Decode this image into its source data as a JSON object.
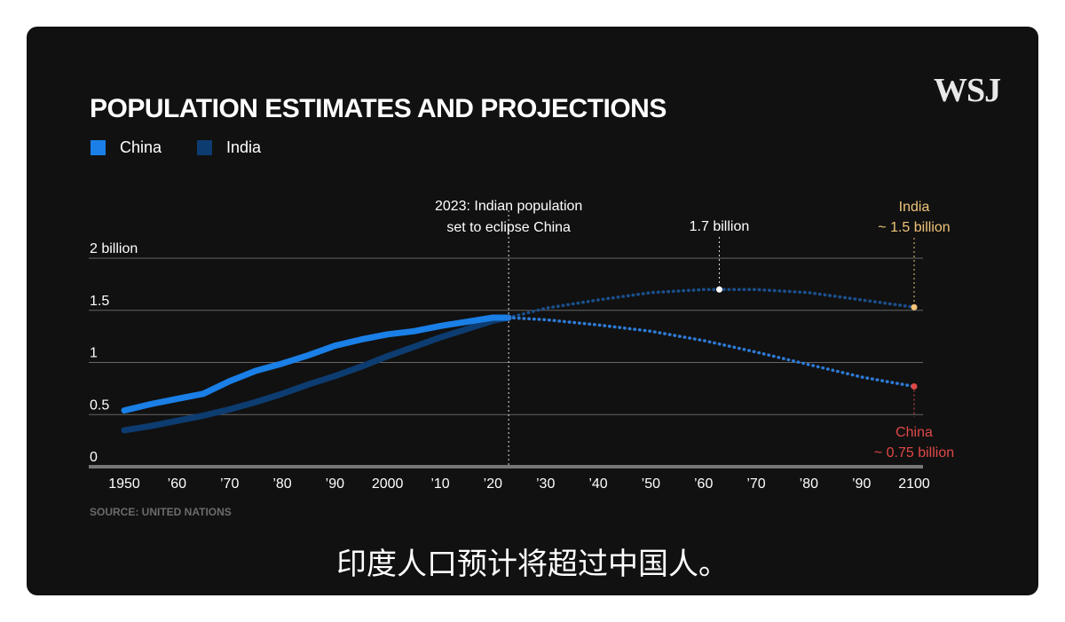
{
  "brand": "WSJ",
  "subtitle": "印度人口预计将超过中国人。",
  "source": "SOURCE: UNITED NATIONS",
  "colors": {
    "china": "#1a7fe6",
    "india": "#0d3c70",
    "india_projection": "#1a4f8c",
    "china_projection": "#2d7ad6",
    "annotation_india": "#f0c47a",
    "annotation_china": "#e04848",
    "grid": "#666666"
  },
  "chart_data": {
    "type": "line",
    "title": "POPULATION ESTIMATES AND PROJECTIONS",
    "legend": [
      "China",
      "India"
    ],
    "xlim": [
      1950,
      2100
    ],
    "ylim": [
      0,
      2
    ],
    "x_ticks": [
      1950,
      1960,
      1970,
      1980,
      1990,
      2000,
      2010,
      2020,
      2030,
      2040,
      2050,
      2060,
      2070,
      2080,
      2090,
      2100
    ],
    "x_tick_labels": [
      "1950",
      "’60",
      "’70",
      "’80",
      "’90",
      "2000",
      "’10",
      "’20",
      "’30",
      "’40",
      "’50",
      "’60",
      "’70",
      "’80",
      "’90",
      "2100"
    ],
    "y_ticks": [
      0,
      0.5,
      1,
      1.5,
      2
    ],
    "y_tick_labels": [
      "0",
      "0.5",
      "1",
      "1.5",
      "2 billion"
    ],
    "divider_year": 2023,
    "series": [
      {
        "name": "China",
        "estimate": {
          "x": [
            1950,
            1955,
            1960,
            1965,
            1970,
            1975,
            1980,
            1985,
            1990,
            1995,
            2000,
            2005,
            2010,
            2015,
            2020,
            2023
          ],
          "y": [
            0.54,
            0.6,
            0.65,
            0.7,
            0.82,
            0.92,
            0.99,
            1.07,
            1.16,
            1.22,
            1.27,
            1.3,
            1.35,
            1.39,
            1.43,
            1.43
          ]
        },
        "projection": {
          "x": [
            2023,
            2030,
            2040,
            2050,
            2060,
            2070,
            2080,
            2090,
            2100
          ],
          "y": [
            1.43,
            1.41,
            1.36,
            1.3,
            1.21,
            1.1,
            0.98,
            0.86,
            0.77
          ]
        }
      },
      {
        "name": "India",
        "estimate": {
          "x": [
            1950,
            1955,
            1960,
            1965,
            1970,
            1975,
            1980,
            1985,
            1990,
            1995,
            2000,
            2005,
            2010,
            2015,
            2020,
            2023
          ],
          "y": [
            0.35,
            0.39,
            0.44,
            0.49,
            0.55,
            0.62,
            0.7,
            0.79,
            0.87,
            0.96,
            1.06,
            1.15,
            1.24,
            1.32,
            1.4,
            1.43
          ]
        },
        "projection": {
          "x": [
            2023,
            2030,
            2040,
            2050,
            2060,
            2063,
            2070,
            2080,
            2090,
            2100
          ],
          "y": [
            1.43,
            1.52,
            1.6,
            1.67,
            1.7,
            1.7,
            1.7,
            1.67,
            1.6,
            1.53
          ]
        }
      }
    ],
    "annotations": [
      {
        "lines": [
          "2023: Indian population",
          "set to eclipse China"
        ],
        "x": 2023
      },
      {
        "lines": [
          "1.7 billion"
        ],
        "x": 2063,
        "y": 1.7
      },
      {
        "lines": [
          "India",
          "~ 1.5 billion"
        ],
        "x": 2100,
        "y": 1.53
      },
      {
        "lines": [
          "China",
          "~ 0.75 billion"
        ],
        "x": 2100,
        "y": 0.77
      }
    ]
  }
}
